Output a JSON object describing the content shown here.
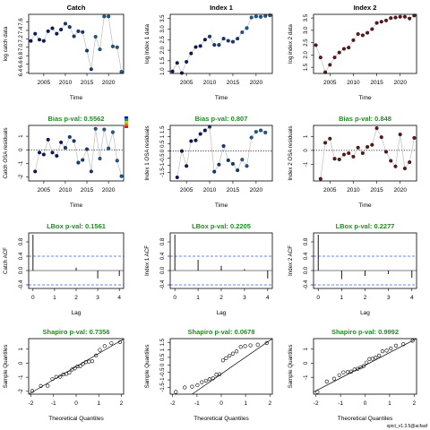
{
  "colors": {
    "frame": "#000000",
    "connector": "#bebebe",
    "point_edge": "#000000",
    "title_green": "#228b22",
    "acf_bound": "#3b5bff",
    "dotted_line": "#000000",
    "index2_fill": "#5a1a1a",
    "point_palette": [
      "#0a1a5e",
      "#133a7a",
      "#1c5a8f"
    ],
    "legend_ticks": [
      "#0000c8",
      "#00a050",
      "#d0c000",
      "#e07000",
      "#c80000"
    ]
  },
  "footer_text": "spict_v1.3.5@acfaaf",
  "chart_data": [
    {
      "type": "scatter",
      "title": "Catch",
      "xlabel": "Time",
      "ylabel": "log catch data",
      "xlim": [
        2001.5,
        2023.5
      ],
      "ylim": [
        6.38,
        7.78
      ],
      "xticks": [
        2005,
        2010,
        2015,
        2020
      ],
      "xtick_labels": [
        "2005",
        "2010",
        "2015",
        "2020"
      ],
      "yticks": [
        6.4,
        6.6,
        6.8,
        7.0,
        7.2,
        7.4,
        7.6
      ],
      "ytick_labels": [
        "6.4",
        "6.6",
        "6.8",
        "7.0",
        "7.2",
        "7.4",
        "7.6"
      ],
      "connect": true,
      "point_style": "filled",
      "x": [
        2002,
        2003,
        2004,
        2005,
        2006,
        2007,
        2008,
        2009,
        2010,
        2011,
        2012,
        2013,
        2014,
        2015,
        2016,
        2017,
        2018,
        2019,
        2020,
        2021,
        2022,
        2023
      ],
      "y": [
        7.15,
        7.32,
        7.18,
        7.15,
        7.38,
        7.45,
        7.32,
        7.42,
        7.56,
        7.48,
        7.26,
        7.38,
        7.36,
        6.92,
        6.48,
        7.25,
        6.95,
        7.73,
        7.73,
        7.02,
        7.0,
        6.42
      ]
    },
    {
      "type": "scatter",
      "title": "Index 1",
      "xlabel": "Time",
      "ylabel": "log Index 1 data",
      "xlim": [
        2001.5,
        2023.5
      ],
      "ylim": [
        0.9,
        3.7
      ],
      "xticks": [
        2005,
        2010,
        2015,
        2020
      ],
      "xtick_labels": [
        "2005",
        "2010",
        "2015",
        "2020"
      ],
      "yticks": [
        1.0,
        1.5,
        2.0,
        2.5,
        3.0,
        3.5
      ],
      "ytick_labels": [
        "1.0",
        "1.5",
        "2.0",
        "2.5",
        "3.0",
        "3.5"
      ],
      "connect": true,
      "point_style": "filled",
      "x": [
        2002,
        2003,
        2004,
        2005,
        2006,
        2007,
        2008,
        2009,
        2010,
        2011,
        2012,
        2013,
        2014,
        2015,
        2016,
        2017,
        2018,
        2019,
        2020,
        2021,
        2022,
        2023
      ],
      "y": [
        1.0,
        1.4,
        0.92,
        1.45,
        1.85,
        2.15,
        2.2,
        2.5,
        2.65,
        2.25,
        2.25,
        2.55,
        2.45,
        2.4,
        2.55,
        2.85,
        3.05,
        3.55,
        3.6,
        3.58,
        3.62,
        3.65
      ]
    },
    {
      "type": "scatter",
      "title": "Index 2",
      "xlabel": "Time",
      "ylabel": "log index 2 data",
      "xlim": [
        2001.5,
        2023.5
      ],
      "ylim": [
        1.25,
        3.65
      ],
      "xticks": [
        2005,
        2010,
        2015,
        2020
      ],
      "xtick_labels": [
        "2005",
        "2010",
        "2015",
        "2020"
      ],
      "yticks": [
        1.5,
        2.0,
        2.5,
        3.0,
        3.5
      ],
      "ytick_labels": [
        "1.5",
        "2.0",
        "2.5",
        "3.0",
        "3.5"
      ],
      "connect": true,
      "point_style": "filled_index2",
      "x": [
        2002,
        2003,
        2004,
        2005,
        2006,
        2007,
        2008,
        2009,
        2010,
        2011,
        2012,
        2013,
        2014,
        2015,
        2016,
        2017,
        2018,
        2019,
        2020,
        2021,
        2022,
        2023
      ],
      "y": [
        2.4,
        1.9,
        1.3,
        1.6,
        1.9,
        2.1,
        2.25,
        2.3,
        2.6,
        2.85,
        2.8,
        2.9,
        3.05,
        3.3,
        3.35,
        3.4,
        3.5,
        3.52,
        3.55,
        3.55,
        3.48,
        3.6
      ]
    },
    {
      "type": "scatter",
      "title": "Bias p-val: 0.5562",
      "title_green": true,
      "xlabel": "Time",
      "ylabel": "Catch OSA residuals",
      "xlim": [
        2001.5,
        2023.5
      ],
      "ylim": [
        -2.3,
        1.8
      ],
      "xticks": [
        2005,
        2010,
        2015,
        2020
      ],
      "xtick_labels": [
        "2005",
        "2010",
        "2015",
        "2020"
      ],
      "yticks": [
        -2,
        -1,
        0,
        1
      ],
      "ytick_labels": [
        "-2",
        "-1",
        "0",
        "1"
      ],
      "connect": true,
      "point_style": "filled",
      "zero_line": true,
      "legend_ticks_visible": true,
      "x": [
        2003,
        2004,
        2005,
        2006,
        2007,
        2008,
        2009,
        2010,
        2011,
        2012,
        2013,
        2014,
        2015,
        2016,
        2017,
        2018,
        2019,
        2020,
        2021,
        2022,
        2023
      ],
      "y": [
        -1.6,
        -0.2,
        -0.35,
        0.75,
        -0.2,
        -0.45,
        0.55,
        0.15,
        0.95,
        0.65,
        -0.95,
        -0.75,
        0.05,
        -1.6,
        1.55,
        -0.65,
        1.5,
        0.1,
        1.3,
        -0.8,
        -1.95
      ]
    },
    {
      "type": "scatter",
      "title": "Bias p-val: 0.807",
      "title_green": true,
      "xlabel": "Time",
      "ylabel": "Index 1 OSA residuals",
      "xlim": [
        2001.5,
        2023.5
      ],
      "ylim": [
        -2.1,
        1.8
      ],
      "xticks": [
        2005,
        2010,
        2015,
        2020
      ],
      "xtick_labels": [
        "2005",
        "2010",
        "2015",
        "2020"
      ],
      "yticks": [
        -1.5,
        -1.0,
        -0.5,
        0.0,
        0.5,
        1.0,
        1.5
      ],
      "ytick_labels": [
        "-1.5",
        "-1",
        "-0.5",
        "0",
        "0.5",
        "1",
        "1.5"
      ],
      "connect": true,
      "point_style": "filled",
      "zero_line": true,
      "x": [
        2003,
        2004,
        2005,
        2006,
        2007,
        2008,
        2009,
        2010,
        2011,
        2012,
        2013,
        2014,
        2015,
        2016,
        2017,
        2018,
        2019,
        2020,
        2021,
        2022
      ],
      "y": [
        -1.85,
        0.0,
        -1.05,
        0.7,
        0.75,
        1.2,
        1.45,
        1.7,
        -1.45,
        -0.95,
        0.35,
        -0.65,
        -0.9,
        -1.35,
        -0.6,
        -1.05,
        0.95,
        1.35,
        1.45,
        1.3
      ]
    },
    {
      "type": "scatter",
      "title": "Bias p-val: 0.848",
      "title_green": true,
      "xlabel": "Time",
      "ylabel": "Index 2 OSA residuals",
      "xlim": [
        2001.5,
        2023.5
      ],
      "ylim": [
        -2.2,
        1.8
      ],
      "xticks": [
        2005,
        2010,
        2015,
        2020
      ],
      "xtick_labels": [
        "2005",
        "2010",
        "2015",
        "2020"
      ],
      "yticks": [
        -1,
        0,
        1
      ],
      "ytick_labels": [
        "-1",
        "0",
        "1"
      ],
      "connect": true,
      "point_style": "filled_index2",
      "zero_line": true,
      "x": [
        2003,
        2004,
        2005,
        2006,
        2007,
        2008,
        2009,
        2010,
        2011,
        2012,
        2013,
        2014,
        2015,
        2016,
        2017,
        2018,
        2019,
        2020,
        2021,
        2022,
        2023
      ],
      "y": [
        -2.05,
        0.55,
        0.85,
        -0.6,
        -0.65,
        -0.3,
        -0.2,
        -0.45,
        0.2,
        -0.2,
        0.25,
        0.4,
        1.6,
        0.95,
        -0.1,
        -0.75,
        -1.15,
        1.15,
        -1.3,
        -0.85,
        0.9
      ]
    },
    {
      "type": "bar",
      "subtype": "acf",
      "title": "LBox p-val: 0.1561",
      "title_green": true,
      "xlabel": "Lag",
      "ylabel": "Catch ACF",
      "xlim": [
        -0.2,
        4.2
      ],
      "ylim": [
        -0.5,
        1.05
      ],
      "xticks": [
        0,
        1,
        2,
        3,
        4
      ],
      "xtick_labels": [
        "0",
        "1",
        "2",
        "3",
        "4"
      ],
      "yticks": [
        -0.4,
        0.0,
        0.4,
        0.8
      ],
      "ytick_labels": [
        "-0.4",
        "0.0",
        "0.4",
        "0.8"
      ],
      "lags": [
        0,
        1,
        2,
        3,
        4
      ],
      "values": [
        1.0,
        0.0,
        0.08,
        -0.22,
        -0.15
      ],
      "conf_bound": 0.4
    },
    {
      "type": "bar",
      "subtype": "acf",
      "title": "LBox p-val: 0.2205",
      "title_green": true,
      "xlabel": "Lag",
      "ylabel": "Index 1 ACF",
      "xlim": [
        -0.2,
        4.2
      ],
      "ylim": [
        -0.5,
        1.05
      ],
      "xticks": [
        0,
        1,
        2,
        3,
        4
      ],
      "xtick_labels": [
        "0",
        "1",
        "2",
        "3",
        "4"
      ],
      "yticks": [
        -0.4,
        0.0,
        0.4,
        0.8
      ],
      "ytick_labels": [
        "-0.4",
        "0.0",
        "0.4",
        "0.8"
      ],
      "lags": [
        0,
        1,
        2,
        3,
        4
      ],
      "values": [
        1.0,
        0.3,
        0.13,
        0.04,
        -0.22
      ],
      "conf_bound": 0.4
    },
    {
      "type": "bar",
      "subtype": "acf",
      "title": "LBox p-val: 0.2277",
      "title_green": true,
      "xlabel": "Lag",
      "ylabel": "Index 2 ACF",
      "xlim": [
        -0.2,
        4.2
      ],
      "ylim": [
        -0.5,
        1.05
      ],
      "xticks": [
        0,
        1,
        2,
        3,
        4
      ],
      "xtick_labels": [
        "0",
        "1",
        "2",
        "3",
        "4"
      ],
      "yticks": [
        -0.4,
        0.0,
        0.4,
        0.8
      ],
      "ytick_labels": [
        "-0.4",
        "0.0",
        "0.4",
        "0.8"
      ],
      "lags": [
        0,
        1,
        2,
        3,
        4
      ],
      "values": [
        1.0,
        -0.24,
        -0.15,
        -0.1,
        -0.2
      ],
      "conf_bound": 0.4
    },
    {
      "type": "scatter",
      "subtype": "qq",
      "title": "Shapiro p-val: 0.7356",
      "title_green": true,
      "xlabel": "Theoretical Quantiles",
      "ylabel": "Sample Quantiles",
      "xlim": [
        -2.1,
        2.1
      ],
      "ylim": [
        -2.2,
        1.75
      ],
      "xticks": [
        -2,
        -1,
        0,
        1,
        2
      ],
      "xtick_labels": [
        "-2",
        "-1",
        "0",
        "1",
        "2"
      ],
      "yticks": [
        -2,
        -1,
        0,
        1
      ],
      "ytick_labels": [
        "-2",
        "-1",
        "0",
        "1"
      ],
      "line": [
        [
          -2.1,
          -2.2
        ],
        [
          2.1,
          1.72
        ]
      ],
      "x": [
        -1.94,
        -1.56,
        -1.26,
        -1.05,
        -0.88,
        -0.71,
        -0.57,
        -0.43,
        -0.3,
        -0.18,
        -0.06,
        0.06,
        0.18,
        0.3,
        0.43,
        0.57,
        0.71,
        0.88,
        1.05,
        1.26,
        1.56,
        1.94
      ],
      "y": [
        -1.97,
        -1.62,
        -1.6,
        -1.12,
        -0.97,
        -0.96,
        -0.8,
        -0.76,
        -0.66,
        -0.45,
        -0.37,
        -0.22,
        -0.2,
        -0.05,
        0.08,
        0.12,
        0.15,
        0.55,
        0.95,
        1.22,
        1.42,
        1.5
      ]
    },
    {
      "type": "scatter",
      "subtype": "qq",
      "title": "Shapiro p-val: 0.0678",
      "title_green": true,
      "xlabel": "Theoretical Quantiles",
      "ylabel": "Sample Quantiles",
      "xlim": [
        -2.1,
        2.1
      ],
      "ylim": [
        -1.95,
        1.75
      ],
      "xticks": [
        -2,
        -1,
        0,
        1,
        2
      ],
      "xtick_labels": [
        "-2",
        "-1",
        "0",
        "1",
        "2"
      ],
      "yticks": [
        -1.5,
        -1.0,
        -0.5,
        0.0,
        0.5,
        1.0,
        1.5
      ],
      "ytick_labels": [
        "-1.5",
        "-1",
        "-0.5",
        "0",
        "0.5",
        "1",
        "1.5"
      ],
      "line": [
        [
          -1.2,
          -1.95
        ],
        [
          2.1,
          1.75
        ]
      ],
      "x": [
        -1.87,
        -1.5,
        -1.2,
        -0.98,
        -0.8,
        -0.63,
        -0.48,
        -0.34,
        -0.2,
        -0.07,
        0.07,
        0.2,
        0.34,
        0.48,
        0.63,
        0.8,
        0.98,
        1.2,
        1.5,
        1.87
      ],
      "y": [
        -1.8,
        -1.5,
        -1.45,
        -1.35,
        -1.15,
        -1.05,
        -0.95,
        -0.9,
        -0.65,
        -0.62,
        0.3,
        0.45,
        0.62,
        0.75,
        0.9,
        1.2,
        1.25,
        1.3,
        1.35,
        1.45
      ]
    },
    {
      "type": "scatter",
      "subtype": "qq",
      "title": "Shapiro p-val: 0.9992",
      "title_green": true,
      "xlabel": "Theoretical Quantiles",
      "ylabel": "Sample Quantiles",
      "xlim": [
        -2.1,
        2.1
      ],
      "ylim": [
        -2.2,
        1.75
      ],
      "xticks": [
        -2,
        -1,
        0,
        1,
        2
      ],
      "xtick_labels": [
        "-2",
        "-1",
        "0",
        "1",
        "2"
      ],
      "yticks": [
        -1,
        0,
        1
      ],
      "ytick_labels": [
        "-1",
        "0",
        "1"
      ],
      "line": [
        [
          -2.1,
          -2.05
        ],
        [
          2.1,
          1.75
        ]
      ],
      "x": [
        -1.94,
        -1.56,
        -1.26,
        -1.05,
        -0.88,
        -0.71,
        -0.57,
        -0.43,
        -0.3,
        -0.18,
        -0.06,
        0.06,
        0.18,
        0.3,
        0.43,
        0.57,
        0.71,
        0.88,
        1.05,
        1.26,
        1.56,
        1.94
      ],
      "y": [
        -2.05,
        -1.3,
        -1.1,
        -0.85,
        -0.65,
        -0.62,
        -0.6,
        -0.45,
        -0.4,
        -0.3,
        -0.2,
        0.05,
        0.3,
        0.32,
        0.4,
        0.55,
        0.85,
        0.9,
        1.05,
        1.25,
        1.35,
        1.6
      ]
    }
  ]
}
